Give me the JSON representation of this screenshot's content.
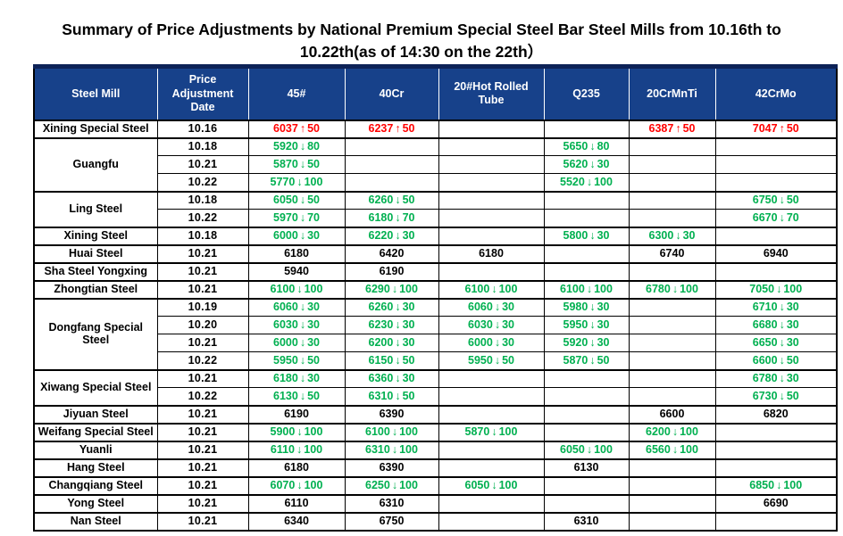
{
  "title": "Summary of Price Adjustments by National Premium Special Steel Bar Steel Mills from 10.16th to 10.22th(as of 14:30 on the 22th）",
  "colors": {
    "header_bg": "#17418A",
    "up": "#FF0000",
    "down": "#00B050",
    "text": "#000000"
  },
  "table": {
    "headers": [
      "Steel Mill",
      "Price Adjustment Date",
      "45#",
      "40Cr",
      "20#Hot Rolled Tube",
      "Q235",
      "20CrMnTi",
      "42CrMo"
    ],
    "groups": [
      {
        "mill": "Xining Special Steel",
        "rows": [
          {
            "date": "10.16",
            "cells": [
              "6037↑50",
              "6237↑50",
              "",
              "",
              "6387↑50",
              "7047↑50"
            ]
          }
        ]
      },
      {
        "mill": "Guangfu",
        "rows": [
          {
            "date": "10.18",
            "cells": [
              "5920↓80",
              "",
              "",
              "5650↓80",
              "",
              ""
            ]
          },
          {
            "date": "10.21",
            "cells": [
              "5870↓50",
              "",
              "",
              "5620↓30",
              "",
              ""
            ]
          },
          {
            "date": "10.22",
            "cells": [
              "5770↓100",
              "",
              "",
              "5520↓100",
              "",
              ""
            ]
          }
        ]
      },
      {
        "mill": "Ling Steel",
        "rows": [
          {
            "date": "10.18",
            "cells": [
              "6050↓50",
              "6260↓50",
              "",
              "",
              "",
              "6750↓50"
            ]
          },
          {
            "date": "10.22",
            "cells": [
              "5970↓70",
              "6180↓70",
              "",
              "",
              "",
              "6670↓70"
            ]
          }
        ]
      },
      {
        "mill": "Xining Steel",
        "rows": [
          {
            "date": "10.18",
            "cells": [
              "6000↓30",
              "6220↓30",
              "",
              "5800↓30",
              "6300↓30",
              ""
            ]
          }
        ]
      },
      {
        "mill": "Huai Steel",
        "rows": [
          {
            "date": "10.21",
            "cells": [
              "6180",
              "6420",
              "6180",
              "",
              "6740",
              "6940"
            ]
          }
        ]
      },
      {
        "mill": "Sha Steel Yongxing",
        "rows": [
          {
            "date": "10.21",
            "cells": [
              "5940",
              "6190",
              "",
              "",
              "",
              ""
            ]
          }
        ]
      },
      {
        "mill": "Zhongtian Steel",
        "rows": [
          {
            "date": "10.21",
            "cells": [
              "6100↓100",
              "6290↓100",
              "6100↓100",
              "6100↓100",
              "6780↓100",
              "7050↓100"
            ]
          }
        ]
      },
      {
        "mill": "Dongfang Special Steel",
        "rows": [
          {
            "date": "10.19",
            "cells": [
              "6060↓30",
              "6260↓30",
              "6060↓30",
              "5980↓30",
              "",
              "6710↓30"
            ]
          },
          {
            "date": "10.20",
            "cells": [
              "6030↓30",
              "6230↓30",
              "6030↓30",
              "5950↓30",
              "",
              "6680↓30"
            ]
          },
          {
            "date": "10.21",
            "cells": [
              "6000↓30",
              "6200↓30",
              "6000↓30",
              "5920↓30",
              "",
              "6650↓30"
            ]
          },
          {
            "date": "10.22",
            "cells": [
              "5950↓50",
              "6150↓50",
              "5950↓50",
              "5870↓50",
              "",
              "6600↓50"
            ]
          }
        ]
      },
      {
        "mill": "Xiwang Special Steel",
        "rows": [
          {
            "date": "10.21",
            "cells": [
              "6180↓30",
              "6360↓30",
              "",
              "",
              "",
              "6780↓30"
            ]
          },
          {
            "date": "10.22",
            "cells": [
              "6130↓50",
              "6310↓50",
              "",
              "",
              "",
              "6730↓50"
            ]
          }
        ]
      },
      {
        "mill": "Jiyuan Steel",
        "rows": [
          {
            "date": "10.21",
            "cells": [
              "6190",
              "6390",
              "",
              "",
              "6600",
              "6820"
            ]
          }
        ]
      },
      {
        "mill": "Weifang Special Steel",
        "rows": [
          {
            "date": "10.21",
            "cells": [
              "5900↓100",
              "6100↓100",
              "5870↓100",
              "",
              "6200↓100",
              ""
            ]
          }
        ]
      },
      {
        "mill": "Yuanli",
        "rows": [
          {
            "date": "10.21",
            "cells": [
              "6110↓100",
              "6310↓100",
              "",
              "6050↓100",
              "6560↓100",
              ""
            ]
          }
        ]
      },
      {
        "mill": "Hang Steel",
        "rows": [
          {
            "date": "10.21",
            "cells": [
              "6180",
              "6390",
              "",
              "6130",
              "",
              ""
            ]
          }
        ]
      },
      {
        "mill": "Changqiang Steel",
        "rows": [
          {
            "date": "10.21",
            "cells": [
              "6070↓100",
              "6250↓100",
              "6050↓100",
              "",
              "",
              "6850↓100"
            ]
          }
        ]
      },
      {
        "mill": "Yong Steel",
        "rows": [
          {
            "date": "10.21",
            "cells": [
              "6110",
              "6310",
              "",
              "",
              "",
              "6690"
            ]
          }
        ]
      },
      {
        "mill": "Nan Steel",
        "rows": [
          {
            "date": "10.21",
            "cells": [
              "6340",
              "6750",
              "",
              "6310",
              "",
              ""
            ]
          }
        ]
      }
    ]
  }
}
